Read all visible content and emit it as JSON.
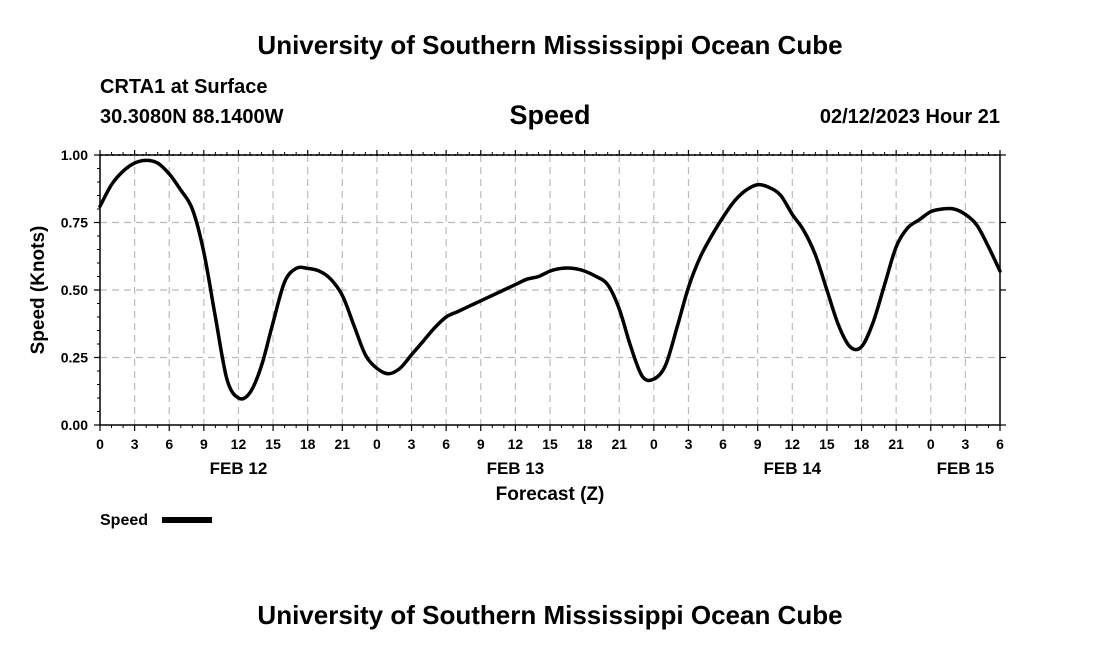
{
  "header": {
    "title": "University of Southern Mississippi Ocean Cube",
    "station": "CRTA1 at Surface",
    "coordinates": "30.3080N  88.1400W",
    "variable_title": "Speed",
    "datetime": "02/12/2023 Hour 21"
  },
  "footer": {
    "title": "University of Southern Mississippi Ocean Cube"
  },
  "chart_data": {
    "type": "line",
    "title": "Speed",
    "xlabel": "Forecast (Z)",
    "ylabel": "Speed (Knots)",
    "ylim": [
      0,
      1
    ],
    "xlim_hours": [
      0,
      78
    ],
    "grid": true,
    "y_ticks": [
      0,
      0.25,
      0.5,
      0.75,
      1.0
    ],
    "y_tick_labels": [
      "0.00",
      "0.25",
      "0.50",
      "0.75",
      "1.00"
    ],
    "x_tick_labels": [
      "0",
      "3",
      "6",
      "9",
      "12",
      "15",
      "18",
      "21",
      "0",
      "3",
      "6",
      "9",
      "12",
      "15",
      "18",
      "21",
      "0",
      "3",
      "6",
      "9",
      "12",
      "15",
      "18",
      "21",
      "0",
      "3",
      "6"
    ],
    "date_labels": [
      {
        "text": "FEB 12",
        "hour": 12
      },
      {
        "text": "FEB 13",
        "hour": 36
      },
      {
        "text": "FEB 14",
        "hour": 60
      },
      {
        "text": "FEB 15",
        "hour": 75
      }
    ],
    "legend": {
      "label": "Speed",
      "position": "bottom-left"
    },
    "series": [
      {
        "name": "Speed",
        "x": [
          0,
          1,
          2,
          3,
          4,
          5,
          6,
          7,
          8,
          9,
          10,
          11,
          12,
          13,
          14,
          15,
          16,
          17,
          18,
          19,
          20,
          21,
          22,
          23,
          24,
          25,
          26,
          27,
          28,
          29,
          30,
          31,
          32,
          33,
          34,
          35,
          36,
          37,
          38,
          39,
          40,
          41,
          42,
          43,
          44,
          45,
          46,
          47,
          48,
          49,
          50,
          51,
          52,
          53,
          54,
          55,
          56,
          57,
          58,
          59,
          60,
          61,
          62,
          63,
          64,
          65,
          66,
          67,
          68,
          69,
          70,
          71,
          72,
          73,
          74,
          75,
          76,
          77,
          78
        ],
        "values": [
          0.81,
          0.89,
          0.94,
          0.97,
          0.98,
          0.97,
          0.93,
          0.87,
          0.8,
          0.64,
          0.4,
          0.17,
          0.1,
          0.12,
          0.22,
          0.38,
          0.53,
          0.58,
          0.58,
          0.57,
          0.54,
          0.48,
          0.37,
          0.26,
          0.21,
          0.19,
          0.21,
          0.26,
          0.31,
          0.36,
          0.4,
          0.42,
          0.44,
          0.46,
          0.48,
          0.5,
          0.52,
          0.54,
          0.55,
          0.57,
          0.58,
          0.58,
          0.57,
          0.55,
          0.52,
          0.43,
          0.29,
          0.18,
          0.17,
          0.22,
          0.36,
          0.51,
          0.62,
          0.7,
          0.77,
          0.83,
          0.87,
          0.89,
          0.88,
          0.85,
          0.78,
          0.72,
          0.63,
          0.5,
          0.37,
          0.29,
          0.29,
          0.38,
          0.52,
          0.66,
          0.73,
          0.76,
          0.79,
          0.8,
          0.8,
          0.78,
          0.74,
          0.66,
          0.57
        ]
      }
    ]
  }
}
